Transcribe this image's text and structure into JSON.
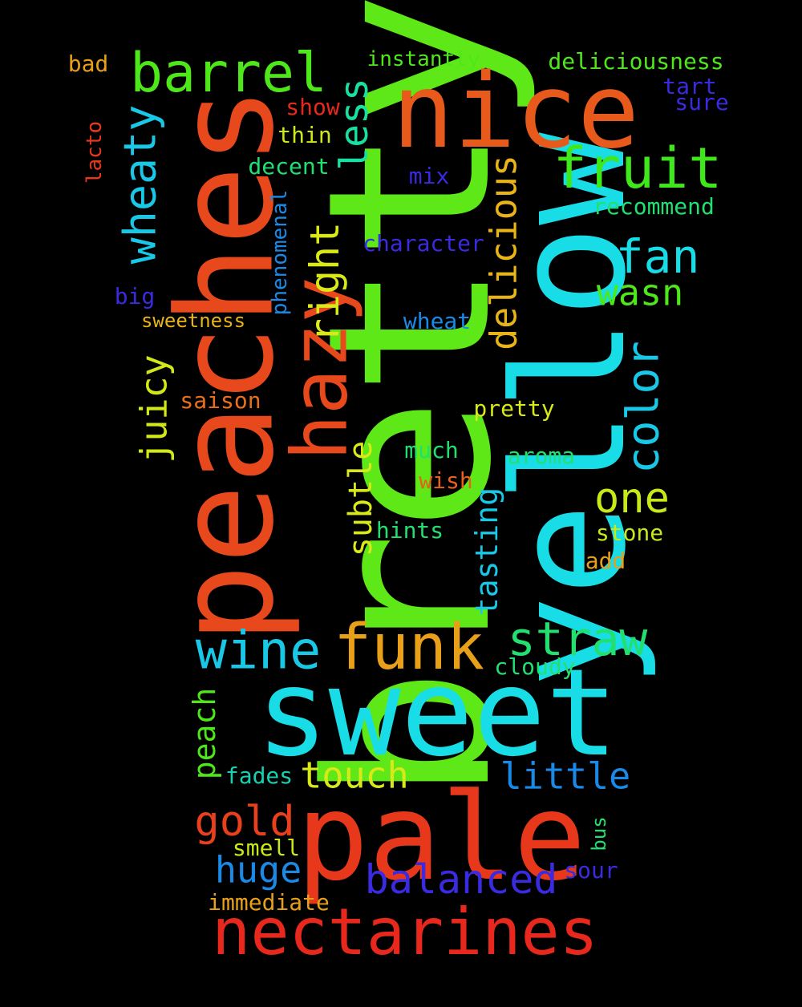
{
  "words": [
    {
      "text": "bretty",
      "color": "#5fe817",
      "vertical": true
    },
    {
      "text": "yellow",
      "color": "#18dde6",
      "vertical": true
    },
    {
      "text": "peaches",
      "color": "#e8491c",
      "vertical": true
    },
    {
      "text": "sweet",
      "color": "#18dde6",
      "vertical": false
    },
    {
      "text": "pale",
      "color": "#e8381c",
      "vertical": false
    },
    {
      "text": "nice",
      "color": "#e85a1c",
      "vertical": false
    },
    {
      "text": "hazy",
      "color": "#e8491c",
      "vertical": true
    },
    {
      "text": "nectarines",
      "color": "#e8281c",
      "vertical": false
    },
    {
      "text": "funk",
      "color": "#e8a018",
      "vertical": false
    },
    {
      "text": "fruit",
      "color": "#3fe81a",
      "vertical": false
    },
    {
      "text": "barrel",
      "color": "#4ee81a",
      "vertical": false
    },
    {
      "text": "wine",
      "color": "#18c8e6",
      "vertical": false
    },
    {
      "text": "straw",
      "color": "#22e070",
      "vertical": false
    },
    {
      "text": "fan",
      "color": "#18dde6",
      "vertical": false
    },
    {
      "text": "color",
      "color": "#18c8e6",
      "vertical": true
    },
    {
      "text": "wheaty",
      "color": "#18c8e6",
      "vertical": true
    },
    {
      "text": "balanced",
      "color": "#3a2ae0",
      "vertical": false
    },
    {
      "text": "one",
      "color": "#c8e818",
      "vertical": false
    },
    {
      "text": "gold",
      "color": "#e8401c",
      "vertical": false
    },
    {
      "text": "right",
      "color": "#d8e818",
      "vertical": true
    },
    {
      "text": "less",
      "color": "#18e0a0",
      "vertical": true
    },
    {
      "text": "delicious",
      "color": "#e8b418",
      "vertical": true
    },
    {
      "text": "wasn",
      "color": "#4ee81a",
      "vertical": false
    },
    {
      "text": "juicy",
      "color": "#d0e818",
      "vertical": true
    },
    {
      "text": "little",
      "color": "#1a8ae8",
      "vertical": false
    },
    {
      "text": "touch",
      "color": "#d8e818",
      "vertical": false
    },
    {
      "text": "huge",
      "color": "#1a8ae8",
      "vertical": false
    },
    {
      "text": "subtle",
      "color": "#d8e818",
      "vertical": true
    },
    {
      "text": "tasting",
      "color": "#18c8e6",
      "vertical": true
    },
    {
      "text": "peach",
      "color": "#4ee81a",
      "vertical": true
    },
    {
      "text": "deliciousness",
      "color": "#4ee81a",
      "vertical": false
    },
    {
      "text": "recommend",
      "color": "#22e070",
      "vertical": false
    },
    {
      "text": "character",
      "color": "#3a2ae0",
      "vertical": false
    },
    {
      "text": "phenomenal",
      "color": "#1a8ae8",
      "vertical": true
    },
    {
      "text": "instantly",
      "color": "#4ee81a",
      "vertical": false
    },
    {
      "text": "bad",
      "color": "#e8a018",
      "vertical": false
    },
    {
      "text": "tart",
      "color": "#3a2ae0",
      "vertical": false
    },
    {
      "text": "sure",
      "color": "#3a2ae0",
      "vertical": false
    },
    {
      "text": "show",
      "color": "#e8281c",
      "vertical": false
    },
    {
      "text": "thin",
      "color": "#d0e818",
      "vertical": false
    },
    {
      "text": "decent",
      "color": "#22e070",
      "vertical": false
    },
    {
      "text": "mix",
      "color": "#3a2ae0",
      "vertical": false
    },
    {
      "text": "lacto",
      "color": "#e8381c",
      "vertical": true
    },
    {
      "text": "big",
      "color": "#3a2ae0",
      "vertical": false
    },
    {
      "text": "sweetness",
      "color": "#e8b418",
      "vertical": false
    },
    {
      "text": "wheat",
      "color": "#1a8ae8",
      "vertical": false
    },
    {
      "text": "saison",
      "color": "#e8701c",
      "vertical": false
    },
    {
      "text": "pretty",
      "color": "#d8e818",
      "vertical": false
    },
    {
      "text": "much",
      "color": "#22e070",
      "vertical": false
    },
    {
      "text": "aroma",
      "color": "#22e070",
      "vertical": false
    },
    {
      "text": "wish",
      "color": "#e8601c",
      "vertical": false
    },
    {
      "text": "hints",
      "color": "#22e070",
      "vertical": false
    },
    {
      "text": "stone",
      "color": "#c8e818",
      "vertical": false
    },
    {
      "text": "add",
      "color": "#e8a018",
      "vertical": false
    },
    {
      "text": "cloudy",
      "color": "#22e070",
      "vertical": false
    },
    {
      "text": "fades",
      "color": "#18d0b0",
      "vertical": false
    },
    {
      "text": "smell",
      "color": "#c8e818",
      "vertical": false
    },
    {
      "text": "bus",
      "color": "#22e070",
      "vertical": true
    },
    {
      "text": "sour",
      "color": "#3a2ae0",
      "vertical": false
    },
    {
      "text": "immediate",
      "color": "#e8a018",
      "vertical": false
    }
  ]
}
